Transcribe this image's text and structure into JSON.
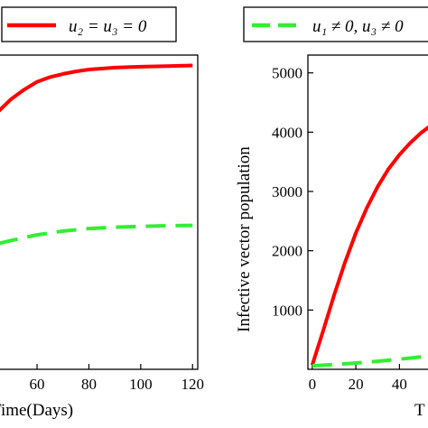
{
  "chart_data": [
    {
      "type": "line",
      "xlabel": "Time(Days)",
      "ylabel": "",
      "xlim": [
        45,
        122
      ],
      "ylim": [
        0,
        1
      ],
      "x_ticks": [
        "60",
        "80",
        "100",
        "120"
      ],
      "y_ticks": [],
      "legend": {
        "placement": "top",
        "entry": "u₂ = u₃ = 0"
      },
      "series": [
        {
          "name": "u₂ = u₃ = 0",
          "color": "#ff0000",
          "style": "solid",
          "x": [
            45,
            50,
            55,
            60,
            65,
            70,
            75,
            80,
            90,
            100,
            110,
            120
          ],
          "y": [
            0.82,
            0.86,
            0.89,
            0.915,
            0.93,
            0.94,
            0.948,
            0.954,
            0.96,
            0.963,
            0.965,
            0.967
          ]
        },
        {
          "name": "",
          "color": "#33ee33",
          "style": "dashed",
          "x": [
            45,
            50,
            60,
            70,
            80,
            90,
            100,
            110,
            120
          ],
          "y": [
            0.4,
            0.41,
            0.428,
            0.44,
            0.448,
            0.452,
            0.455,
            0.457,
            0.458
          ]
        }
      ]
    },
    {
      "type": "line",
      "xlabel": "T",
      "ylabel": "Infective vector population",
      "xlim": [
        -2,
        56
      ],
      "ylim": [
        0,
        5300
      ],
      "x_ticks": [
        "0",
        "20",
        "40"
      ],
      "y_ticks": [
        "1000",
        "2000",
        "3000",
        "4000",
        "5000"
      ],
      "legend": {
        "placement": "top",
        "entry": "u₁ ≠ 0, u₃ ≠ 0"
      },
      "series": [
        {
          "name": "",
          "color": "#ff0000",
          "style": "solid",
          "x": [
            0,
            5,
            10,
            15,
            20,
            25,
            30,
            35,
            40,
            45,
            50,
            55
          ],
          "y": [
            70,
            650,
            1250,
            1800,
            2300,
            2720,
            3080,
            3380,
            3620,
            3820,
            3990,
            4130
          ]
        },
        {
          "name": "u₁ ≠ 0, u₃ ≠ 0",
          "color": "#33ee33",
          "style": "dashed",
          "x": [
            0,
            10,
            20,
            30,
            40,
            50,
            55
          ],
          "y": [
            60,
            80,
            105,
            135,
            170,
            210,
            230
          ]
        }
      ]
    }
  ]
}
